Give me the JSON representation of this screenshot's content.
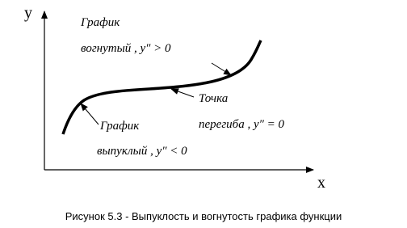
{
  "axes": {
    "y": "y",
    "x": "x"
  },
  "concave": {
    "title": "График",
    "condition": "вогнутый , y″ > 0"
  },
  "inflection": {
    "title": "Точка",
    "condition": "перегиба , y″ = 0"
  },
  "convex": {
    "title": "График",
    "condition": "выпуклый , y″ < 0"
  },
  "caption": "Рисунок 5.3 - Выпуклость и вогнутость графика функции"
}
